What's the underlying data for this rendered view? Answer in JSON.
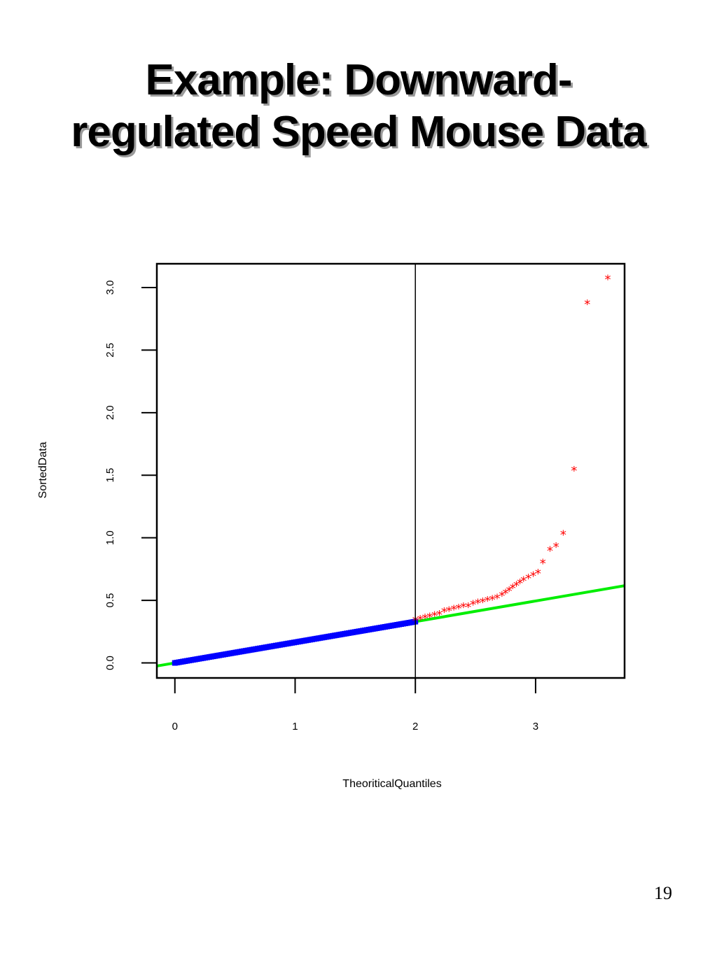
{
  "slide": {
    "title_line1": "Example:  Downward-",
    "title_line2": "regulated Speed Mouse Data",
    "page_number": "19"
  },
  "chart_data": {
    "type": "scatter",
    "xlabel": "TheoriticalQuantiles",
    "ylabel": "SortedData",
    "xlim": [
      -0.15,
      3.74
    ],
    "ylim": [
      -0.12,
      3.19
    ],
    "xticks": [
      "0",
      "1",
      "2",
      "3"
    ],
    "yticks": [
      "0.0",
      "0.5",
      "1.0",
      "1.5",
      "2.0",
      "2.5",
      "3.0"
    ],
    "grid": false,
    "vertical_line_x": 2,
    "colors": {
      "lower": "#0000ff",
      "upper": "#ff0000",
      "fit_line": "#00ee00"
    },
    "fit_line": {
      "intercept": 0.0,
      "slope": 0.165
    },
    "series": [
      {
        "marker": "square",
        "color": "#0000ff",
        "x_range": [
          0,
          2.0
        ],
        "y_range": [
          0.0,
          0.33
        ],
        "count": 120
      },
      {
        "marker": "star",
        "color": "#ff0000",
        "x": [
          2.0,
          2.04,
          2.08,
          2.12,
          2.16,
          2.2,
          2.24,
          2.28,
          2.32,
          2.36,
          2.4,
          2.44,
          2.48,
          2.52,
          2.56,
          2.6,
          2.64,
          2.68,
          2.72,
          2.75,
          2.78,
          2.81,
          2.84,
          2.87,
          2.9,
          2.94,
          2.98,
          3.02,
          3.06,
          3.12,
          3.17,
          3.23,
          3.32,
          3.43,
          3.6
        ],
        "y": [
          0.34,
          0.35,
          0.36,
          0.37,
          0.38,
          0.39,
          0.41,
          0.42,
          0.43,
          0.44,
          0.45,
          0.45,
          0.47,
          0.48,
          0.49,
          0.5,
          0.51,
          0.52,
          0.54,
          0.56,
          0.58,
          0.6,
          0.62,
          0.64,
          0.66,
          0.68,
          0.7,
          0.72,
          0.8,
          0.9,
          0.93,
          1.03,
          1.54,
          2.87,
          3.07
        ]
      }
    ]
  }
}
